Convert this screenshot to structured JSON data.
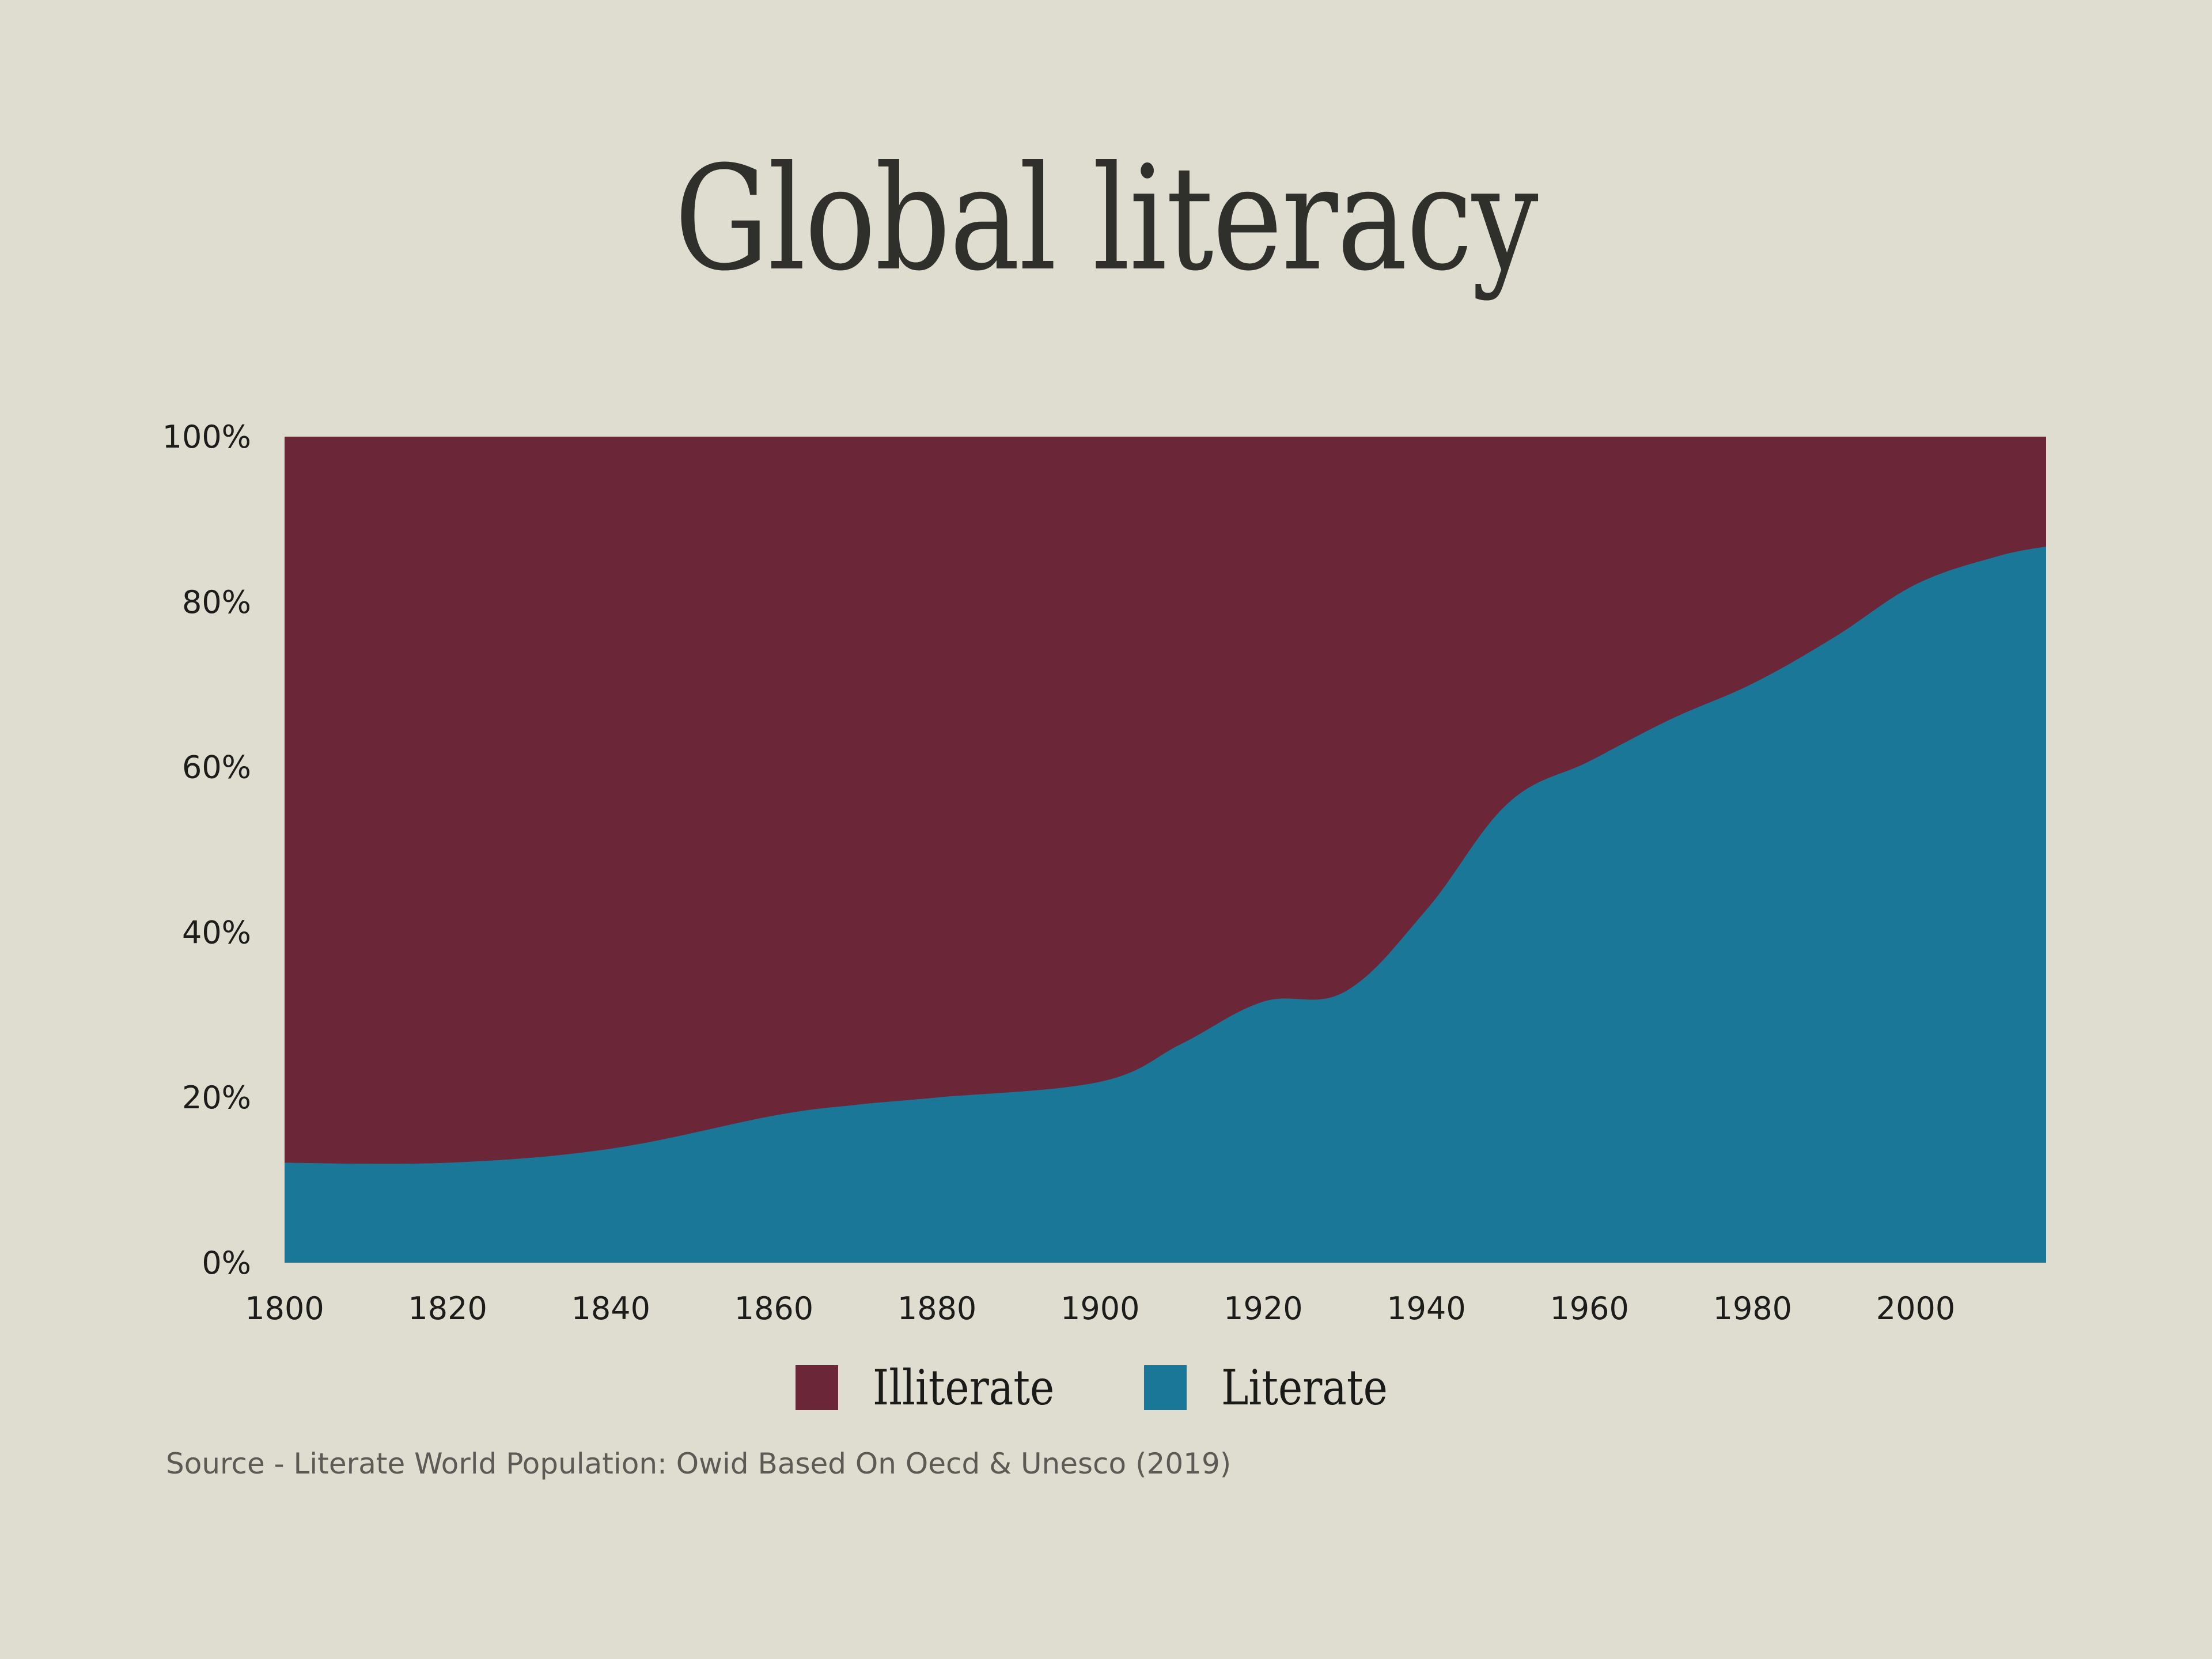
{
  "title": "Global literacy",
  "legend": [
    {
      "label": "Illiterate",
      "color": "#6b2738"
    },
    {
      "label": "Literate",
      "color": "#1b7797"
    }
  ],
  "source": "Source - Literate World Population: Owid Based On Oecd & Unesco (2019)",
  "chart_data": {
    "type": "area",
    "stacked": true,
    "normalized": true,
    "title": "Global literacy",
    "xlabel": "",
    "ylabel": "",
    "x": [
      1800,
      1820,
      1840,
      1860,
      1870,
      1880,
      1900,
      1910,
      1920,
      1930,
      1940,
      1950,
      1960,
      1970,
      1980,
      1990,
      2000,
      2010,
      2016
    ],
    "series": [
      {
        "name": "Literate",
        "color": "#1b7797",
        "values": [
          12.1,
          12.1,
          13.8,
          17.8,
          19.1,
          20.0,
          21.9,
          26.5,
          31.6,
          32.8,
          42.7,
          55.6,
          60.7,
          65.8,
          70.1,
          75.7,
          82.1,
          85.5,
          86.7
        ]
      },
      {
        "name": "Illiterate",
        "color": "#6b2738",
        "values": [
          87.9,
          87.9,
          86.2,
          82.2,
          80.9,
          80.0,
          78.1,
          73.5,
          68.4,
          67.2,
          57.3,
          44.4,
          39.3,
          34.2,
          29.9,
          24.3,
          17.9,
          14.5,
          13.3
        ]
      }
    ],
    "xlim": [
      1800,
      2016
    ],
    "ylim": [
      0,
      100
    ],
    "x_ticks": [
      "1800",
      "1820",
      "1840",
      "1860",
      "1880",
      "1900",
      "1920",
      "1940",
      "1960",
      "1980",
      "2000"
    ],
    "y_ticks": [
      "0%",
      "20%",
      "40%",
      "60%",
      "80%",
      "100%"
    ],
    "grid": false,
    "legend_position": "bottom"
  }
}
